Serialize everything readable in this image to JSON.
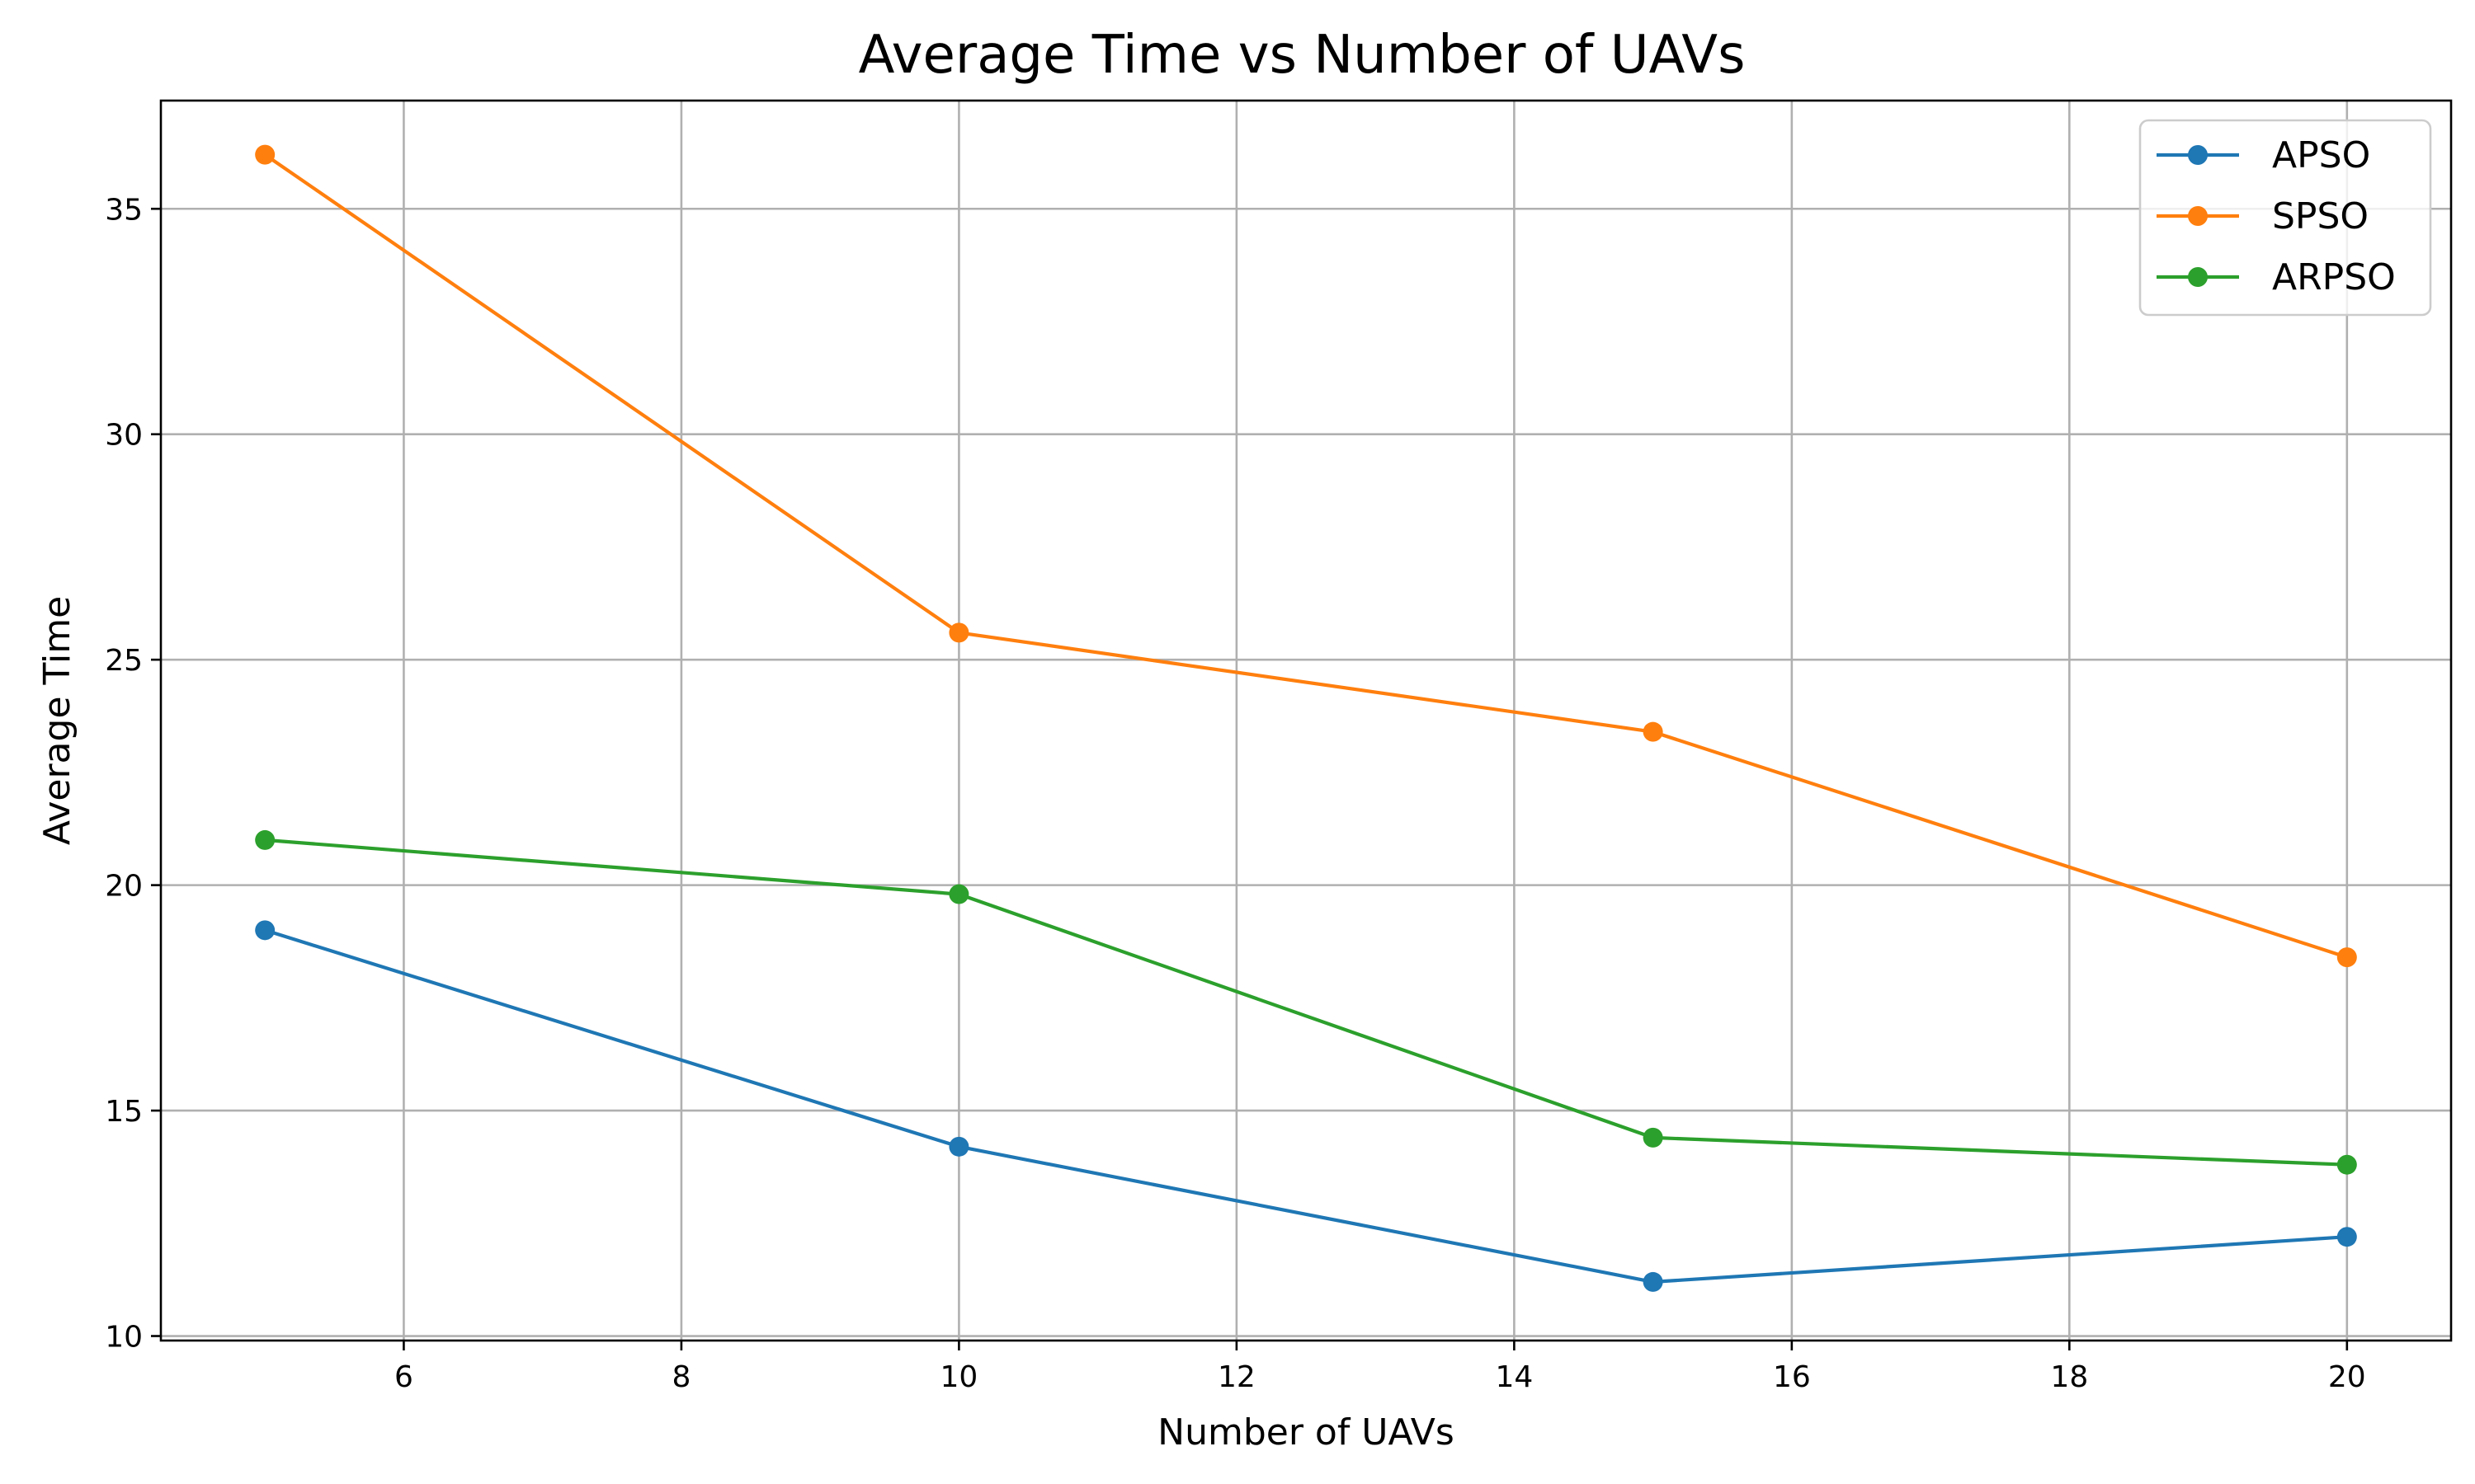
{
  "chart_data": {
    "type": "line",
    "title": "Average Time vs Number of UAVs",
    "xlabel": "Number of UAVs",
    "ylabel": "Average Time",
    "x": [
      5,
      10,
      15,
      20
    ],
    "xlim": [
      4.25,
      20.75
    ],
    "ylim": [
      9.9,
      37.4
    ],
    "xticks": [
      6,
      8,
      10,
      12,
      14,
      16,
      18,
      20
    ],
    "yticks": [
      10,
      15,
      20,
      25,
      30,
      35
    ],
    "grid": true,
    "legend_position": "top-right",
    "marker": "circle",
    "series": [
      {
        "name": "APSO",
        "color": "#1f77b4",
        "values": [
          19.0,
          14.2,
          11.2,
          12.2
        ]
      },
      {
        "name": "SPSO",
        "color": "#ff7f0e",
        "values": [
          36.2,
          25.6,
          23.4,
          18.4
        ]
      },
      {
        "name": "ARPSO",
        "color": "#2ca02c",
        "values": [
          21.0,
          19.8,
          14.4,
          13.8
        ]
      }
    ]
  }
}
